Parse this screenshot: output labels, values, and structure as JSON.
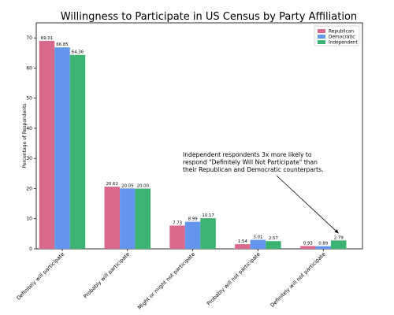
{
  "chart_data": {
    "type": "bar",
    "title": "Willingness to Participate in US Census by Party Affiliation",
    "xlabel": "",
    "ylabel": "Percentage of Respondents",
    "ylim": [
      0,
      75
    ],
    "yticks": [
      0,
      10,
      20,
      30,
      40,
      50,
      60,
      70
    ],
    "grid": false,
    "legend_position": "top-right",
    "categories": [
      "Definitely will participate",
      "Probably will participate",
      "Might or might not participate",
      "Probably will not participate",
      "Definitely will not participate"
    ],
    "series": [
      {
        "name": "Republican",
        "color": "#d9698b",
        "values": [
          69.01,
          20.62,
          7.73,
          1.54,
          0.93
        ]
      },
      {
        "name": "Democratic",
        "color": "#6495ed",
        "values": [
          66.85,
          20.05,
          8.99,
          3.01,
          0.89
        ]
      },
      {
        "name": "Independent",
        "color": "#3cb371",
        "values": [
          64.36,
          20.0,
          10.17,
          2.57,
          2.79
        ]
      }
    ],
    "data_labels": [
      [
        "69.01",
        "20.62",
        "7.73",
        "1.54",
        "0.93"
      ],
      [
        "66.85",
        "20.05",
        "8.99",
        "3.01",
        "0.89"
      ],
      [
        "64.36",
        "20.00",
        "10.17",
        "2.57",
        "2.79"
      ]
    ],
    "annotation": {
      "lines": [
        "Independent respondents 3x more likely to",
        "respond \"Definitely Will Not Participate\" than",
        "their Republican and Democratic counterparts."
      ],
      "arrow_target": {
        "category_index": 4,
        "series_index": 2,
        "value": 2.79
      }
    }
  }
}
